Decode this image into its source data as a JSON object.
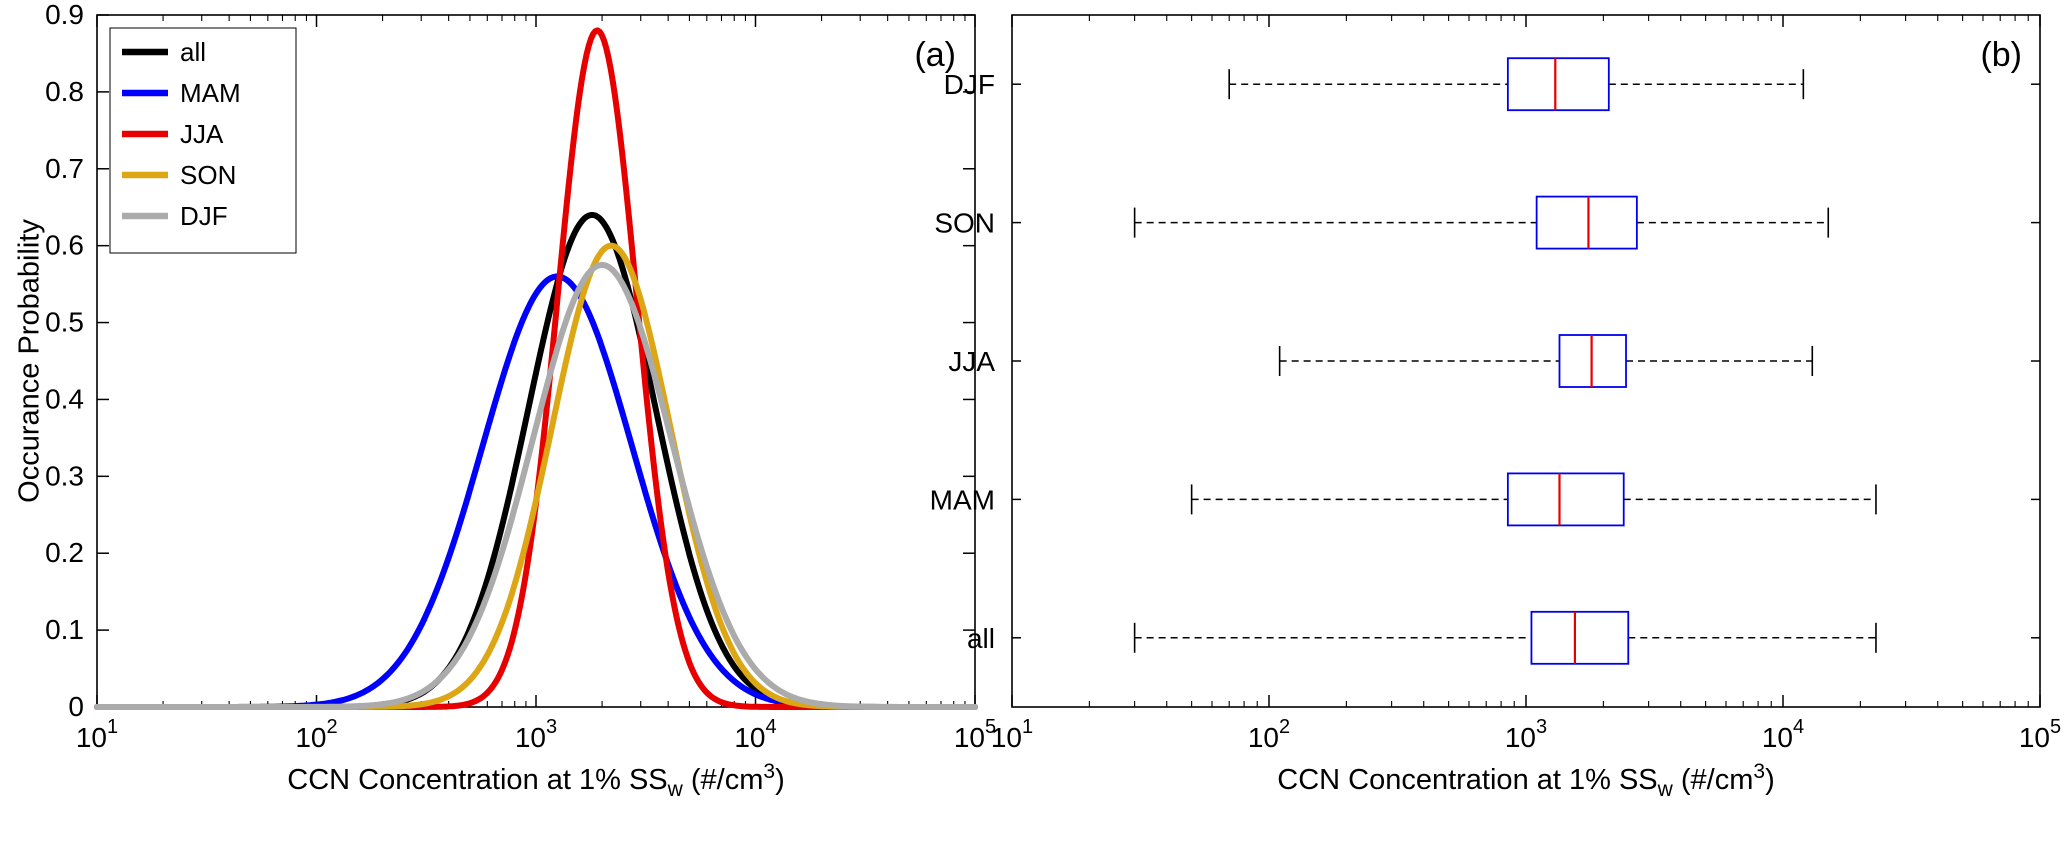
{
  "figure": {
    "panel_a_label": "(a)",
    "panel_b_label": "(b)",
    "ylabel_a": "Occurance Probability",
    "xlabel": {
      "pre": "CCN Concentration at 1% SS",
      "sub": "w",
      "mid": " (#/cm",
      "sup": "3",
      "post": ")"
    }
  },
  "chart_data": [
    {
      "type": "line",
      "panel": "a",
      "x_scale": "log10",
      "xlim_exponents": [
        1,
        5
      ],
      "xtick_labels": [
        "10^1",
        "10^2",
        "10^3",
        "10^4",
        "10^5"
      ],
      "ylim": [
        0,
        0.9
      ],
      "ytick_step": 0.1,
      "ytick_labels": [
        "0",
        "0.1",
        "0.2",
        "0.3",
        "0.4",
        "0.5",
        "0.6",
        "0.7",
        "0.8",
        "0.9"
      ],
      "xlabel": "CCN Concentration at 1% SSw (#/cm3)",
      "ylabel": "Occurance Probability",
      "legend_position": "top-left",
      "curve_model": "gaussian_in_log10x",
      "series": [
        {
          "name": "all",
          "color": "#000000",
          "peak_x": 1800,
          "peak_y": 0.64,
          "sigma_log10": 0.29
        },
        {
          "name": "MAM",
          "color": "#0000ff",
          "peak_x": 1250,
          "peak_y": 0.56,
          "sigma_log10": 0.34
        },
        {
          "name": "JJA",
          "color": "#e60000",
          "peak_x": 1900,
          "peak_y": 0.88,
          "sigma_log10": 0.18
        },
        {
          "name": "SON",
          "color": "#dca614",
          "peak_x": 2200,
          "peak_y": 0.6,
          "sigma_log10": 0.27
        },
        {
          "name": "DJF",
          "color": "#ababab",
          "peak_x": 2000,
          "peak_y": 0.575,
          "sigma_log10": 0.315
        }
      ]
    },
    {
      "type": "boxplot",
      "panel": "b",
      "orientation": "horizontal",
      "x_scale": "log10",
      "xlim_exponents": [
        1,
        5
      ],
      "xtick_labels": [
        "10^1",
        "10^2",
        "10^3",
        "10^4",
        "10^5"
      ],
      "xlabel": "CCN Concentration at 1% SSw (#/cm3)",
      "box_color": "#0000ee",
      "median_color": "#e60000",
      "whisker_style": "dashed",
      "boxes_top_to_bottom": [
        {
          "name": "DJF",
          "whisker_low": 70,
          "q1": 850,
          "median": 1300,
          "q3": 2100,
          "whisker_high": 12000
        },
        {
          "name": "SON",
          "whisker_low": 30,
          "q1": 1100,
          "median": 1750,
          "q3": 2700,
          "whisker_high": 15000
        },
        {
          "name": "JJA",
          "whisker_low": 110,
          "q1": 1350,
          "median": 1800,
          "q3": 2450,
          "whisker_high": 13000
        },
        {
          "name": "MAM",
          "whisker_low": 50,
          "q1": 850,
          "median": 1350,
          "q3": 2400,
          "whisker_high": 23000
        },
        {
          "name": "all",
          "whisker_low": 30,
          "q1": 1050,
          "median": 1550,
          "q3": 2500,
          "whisker_high": 23000
        }
      ]
    }
  ]
}
